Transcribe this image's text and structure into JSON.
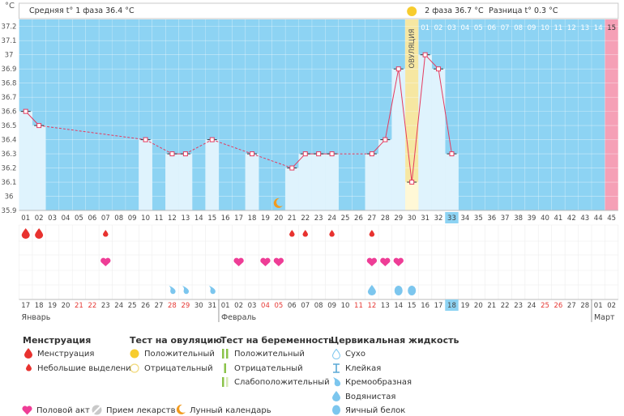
{
  "header": {
    "unit": "°C",
    "phase1_label": "Средняя t° 1 фаза",
    "phase1_value": "36.4 °C",
    "phase2_label": "2 фаза",
    "phase2_value": "36.7 °C",
    "diff_label": "Разница",
    "diff_value": "t° 0.3 °C"
  },
  "ovulation_label": "ОВУЛЯЦИЯ",
  "months": [
    "Январь",
    "Февраль",
    "Март"
  ],
  "colors": {
    "sky": "#8dd3f3",
    "sky_light": "#dff3fd",
    "ovulation": "#f6e7a2",
    "pink_day": "#f5a0b6",
    "line": "#e53a5e",
    "drop": "#e8322f",
    "heart": "#ee3d96",
    "water": "#7cc6ee",
    "phase_yellow": "#f7cc2e"
  },
  "chart_data": {
    "type": "line",
    "title": "",
    "xlabel": "",
    "ylabel": "°C",
    "ylim": [
      35.9,
      37.25
    ],
    "y_ticks": [
      "35.9",
      "36",
      "36.1",
      "36.2",
      "36.3",
      "36.4",
      "36.5",
      "36.6",
      "36.7",
      "36.8",
      "36.9",
      "37",
      "37.1",
      "37.2"
    ],
    "cycle_days": [
      "01",
      "02",
      "03",
      "04",
      "05",
      "06",
      "07",
      "08",
      "09",
      "10",
      "11",
      "12",
      "13",
      "14",
      "15",
      "16",
      "17",
      "18",
      "19",
      "20",
      "21",
      "22",
      "23",
      "24",
      "25",
      "26",
      "27",
      "28",
      "29",
      "30",
      "31",
      "32",
      "33",
      "34",
      "35",
      "36",
      "37",
      "38",
      "39",
      "40",
      "41",
      "42",
      "43",
      "44",
      "45"
    ],
    "dates": [
      "17",
      "18",
      "19",
      "20",
      "21",
      "22",
      "23",
      "24",
      "25",
      "26",
      "27",
      "28",
      "29",
      "30",
      "31",
      "01",
      "02",
      "03",
      "04",
      "05",
      "06",
      "07",
      "08",
      "09",
      "10",
      "11",
      "12",
      "13",
      "14",
      "15",
      "16",
      "17",
      "18",
      "19",
      "20",
      "21",
      "22",
      "23",
      "24",
      "25",
      "26",
      "27",
      "28",
      "01",
      "02"
    ],
    "red_date_indices": [
      4,
      5,
      11,
      12,
      18,
      19,
      25,
      26,
      39,
      40
    ],
    "highlighted_index": 32,
    "ovulation_index": 29,
    "ovulation_top_days": [
      "01",
      "02",
      "03",
      "04",
      "05",
      "06",
      "07",
      "08",
      "09",
      "10",
      "11",
      "12",
      "13",
      "14",
      "15"
    ],
    "temperature": [
      {
        "day": "01",
        "temp": 36.6
      },
      {
        "day": "02",
        "temp": 36.5
      },
      {
        "day": "10",
        "temp": 36.4
      },
      {
        "day": "12",
        "temp": 36.3
      },
      {
        "day": "13",
        "temp": 36.3
      },
      {
        "day": "15",
        "temp": 36.4
      },
      {
        "day": "18",
        "temp": 36.3
      },
      {
        "day": "21",
        "temp": 36.2
      },
      {
        "day": "22",
        "temp": 36.3
      },
      {
        "day": "23",
        "temp": 36.3
      },
      {
        "day": "24",
        "temp": 36.3
      },
      {
        "day": "27",
        "temp": 36.3
      },
      {
        "day": "28",
        "temp": 36.4
      },
      {
        "day": "29",
        "temp": 36.9
      },
      {
        "day": "30",
        "temp": 36.1
      },
      {
        "day": "31",
        "temp": 37.0
      },
      {
        "day": "32",
        "temp": 36.9
      },
      {
        "day": "33",
        "temp": 36.3
      }
    ],
    "menstruation_days": [
      "01",
      "02"
    ],
    "spotting_days": [
      "07",
      "21",
      "22",
      "24",
      "27"
    ],
    "intercourse_days": [
      "07",
      "17",
      "19",
      "20",
      "27",
      "28",
      "29"
    ],
    "cervical_creamy_days": [
      "12",
      "13",
      "15"
    ],
    "cervical_watery_days": [
      "27"
    ],
    "cervical_eggwhite_days": [
      "29",
      "30"
    ],
    "moon_days": [
      "20"
    ]
  },
  "legend": {
    "menstruation_title": "Менструация",
    "menstruation": "Менструация",
    "spotting": "Небольшие выделения",
    "ovtest_title": "Тест на овуляцию",
    "ov_positive": "Положительный",
    "ov_negative": "Отрицательный",
    "pregtest_title": "Тест на беременность",
    "preg_positive": "Положительный",
    "preg_negative": "Отрицательный",
    "preg_weak": "Слабоположительный",
    "cervical_title": "Цервикальная жидкость",
    "cf_dry": "Сухо",
    "cf_sticky": "Клейкая",
    "cf_creamy": "Кремообразная",
    "cf_watery": "Водянистая",
    "cf_eggwhite": "Яичный белок",
    "intercourse": "Половой акт",
    "medication": "Прием лекарств",
    "lunar": "Лунный календарь"
  }
}
